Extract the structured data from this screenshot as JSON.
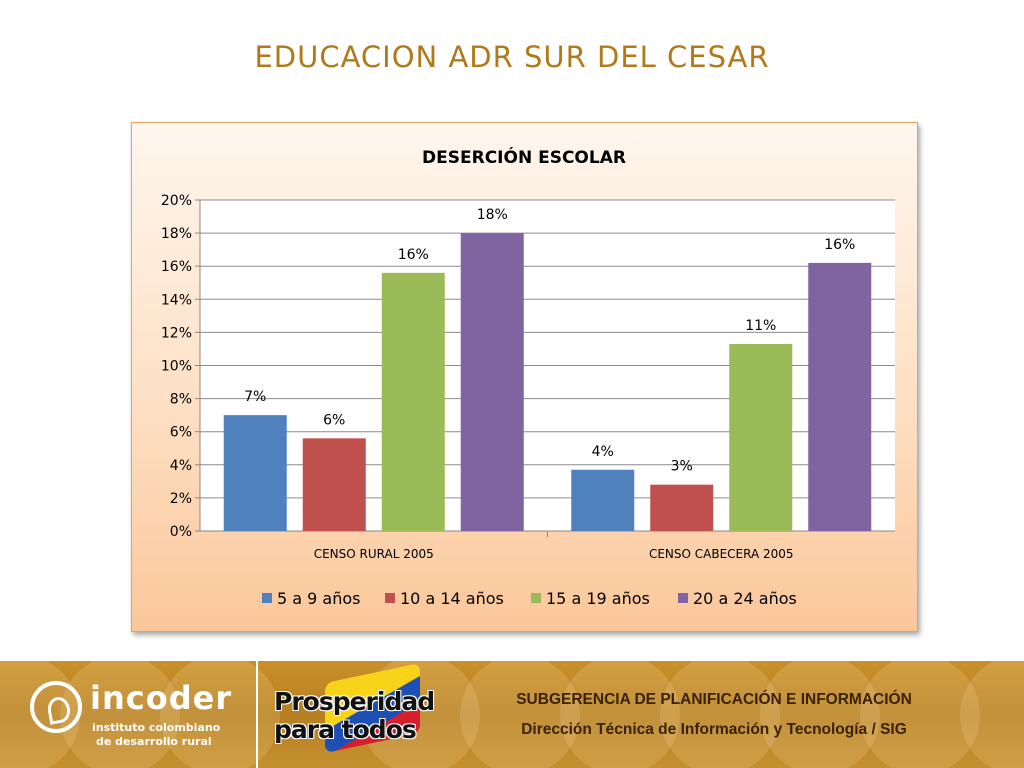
{
  "slide": {
    "title": "EDUCACION ADR SUR DEL CESAR"
  },
  "chart_data": {
    "type": "bar",
    "title": "DESERCIÓN ESCOLAR",
    "categories": [
      "CENSO RURAL 2005",
      "CENSO CABECERA 2005"
    ],
    "series": [
      {
        "name": "5 a 9 años",
        "color": "#4f81bd",
        "values": [
          7,
          3.7
        ],
        "labels": [
          "7%",
          "4%"
        ]
      },
      {
        "name": "10 a 14 años",
        "color": "#c0504d",
        "values": [
          5.6,
          2.8
        ],
        "labels": [
          "6%",
          "3%"
        ]
      },
      {
        "name": "15 a 19 años",
        "color": "#9bbb59",
        "values": [
          15.6,
          11.3
        ],
        "labels": [
          "16%",
          "11%"
        ]
      },
      {
        "name": "20 a 24 años",
        "color": "#8064a2",
        "values": [
          18,
          16.2
        ],
        "labels": [
          "18%",
          "16%"
        ]
      }
    ],
    "y_ticks": [
      "0%",
      "2%",
      "4%",
      "6%",
      "8%",
      "10%",
      "12%",
      "14%",
      "16%",
      "18%",
      "20%"
    ],
    "ylim": [
      0,
      20
    ],
    "grid": true,
    "legend_position": "bottom"
  },
  "footer": {
    "org_name": "incoder",
    "org_sub_1": "instituto colombiano",
    "org_sub_2": "de desarrollo rural",
    "slogan_1": "Prosperidad",
    "slogan_2": "para todos",
    "line_1": "SUBGERENCIA DE PLANIFICACIÓN E INFORMACIÓN",
    "line_2": "Dirección Técnica de Información y Tecnología / SIG"
  }
}
